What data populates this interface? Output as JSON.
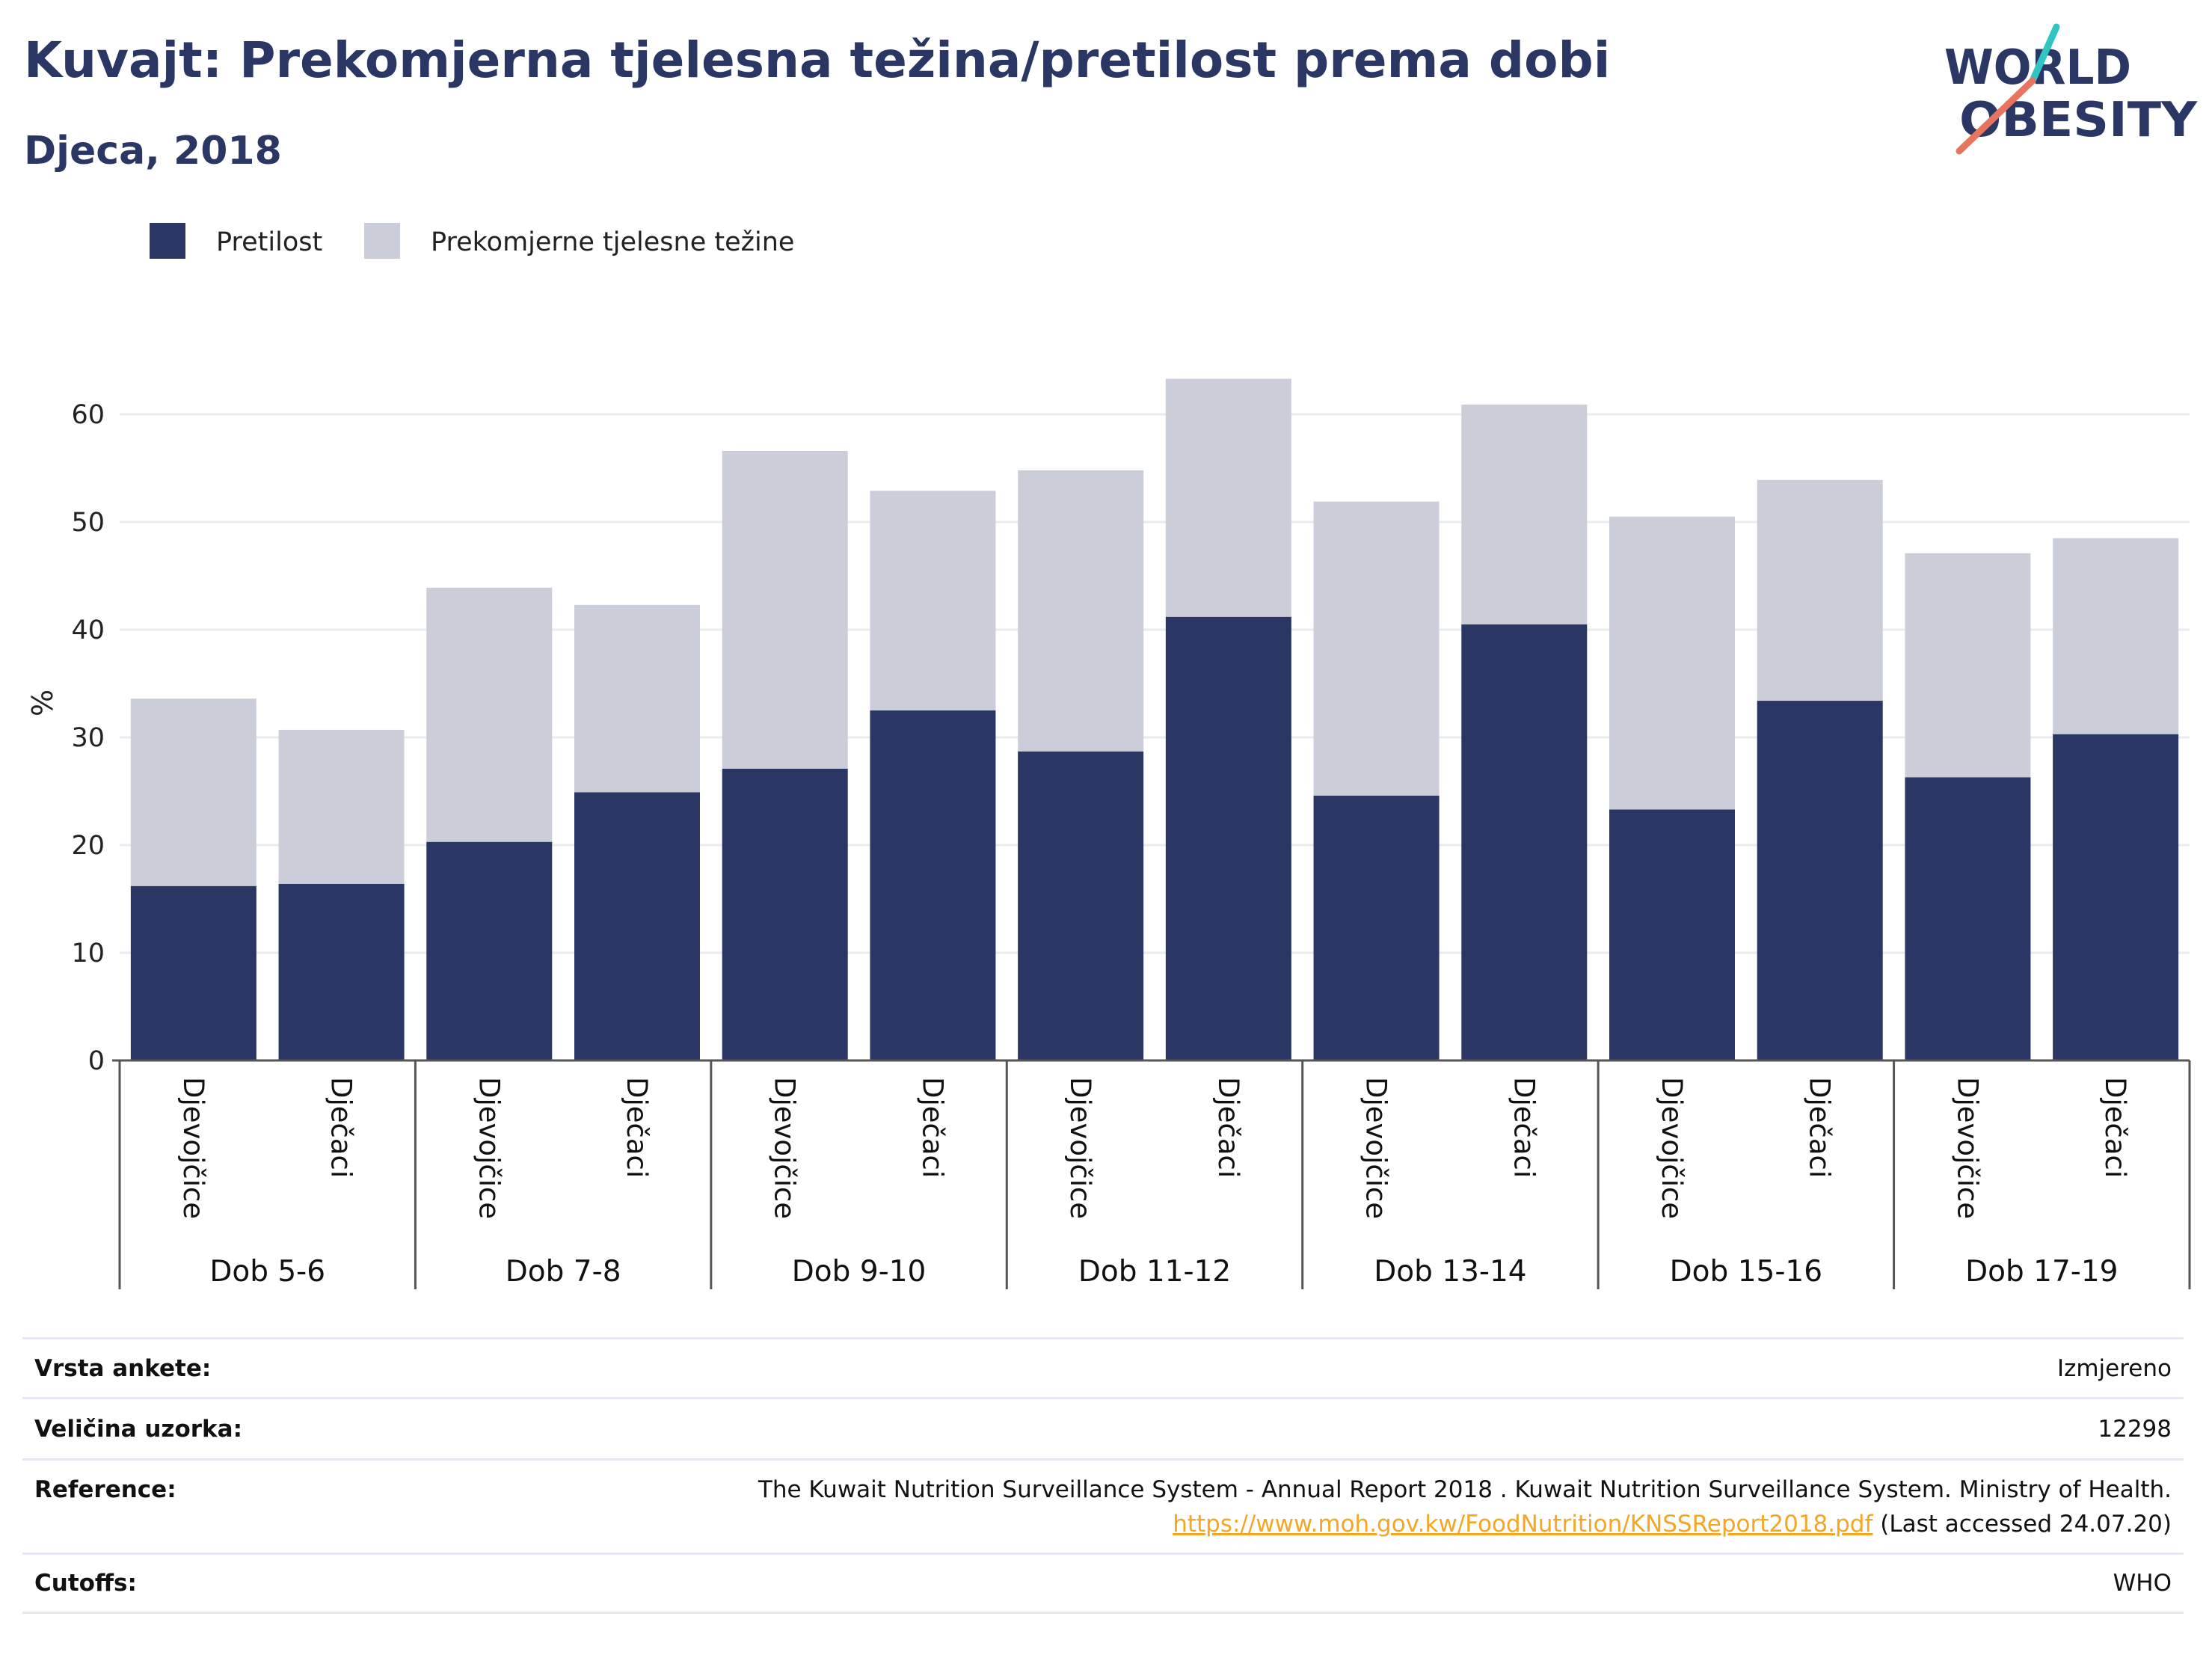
{
  "header": {
    "title": "Kuvajt: Prekomjerna tjelesna težina/pretilost prema dobi",
    "subtitle": "Djeca, 2018"
  },
  "logo": {
    "line1": "WORLD",
    "line2": "OBESITY",
    "accent_colors": [
      "#32c4c0",
      "#e8735e"
    ]
  },
  "colors": {
    "obesity": "#2a3663",
    "overweight": "#cbcdd8",
    "grid": "#e9ebf1",
    "axis": "#555555"
  },
  "chart_data": {
    "type": "bar",
    "stacked": true,
    "ylabel": "%",
    "ylim": [
      0,
      65
    ],
    "yticks": [
      0,
      10,
      20,
      30,
      40,
      50,
      60
    ],
    "grid": true,
    "legend_position": "top-left",
    "legend": [
      "Pretilost",
      "Prekomjerne tjelesne težine"
    ],
    "groups": [
      "Dob 5-6",
      "Dob 7-8",
      "Dob 9-10",
      "Dob 11-12",
      "Dob 13-14",
      "Dob 15-16",
      "Dob 17-19"
    ],
    "subcategories": [
      "Djevojčice",
      "Dječaci"
    ],
    "series": [
      {
        "name": "Pretilost",
        "values": [
          16.2,
          16.4,
          20.3,
          24.9,
          27.1,
          32.5,
          28.7,
          41.2,
          24.6,
          40.5,
          23.3,
          33.4,
          26.3,
          30.3
        ]
      },
      {
        "name": "Prekomjerne tjelesne težine",
        "values": [
          17.4,
          14.3,
          23.6,
          17.4,
          29.5,
          20.4,
          26.1,
          22.1,
          27.3,
          20.4,
          27.2,
          20.5,
          20.8,
          18.2
        ]
      }
    ]
  },
  "footer": {
    "survey_type_label": "Vrsta ankete:",
    "survey_type_value": "Izmjereno",
    "sample_size_label": "Veličina uzorka:",
    "sample_size_value": "12298",
    "reference_label": "Reference:",
    "reference_text": "The Kuwait Nutrition Surveillance System - Annual Report 2018 . Kuwait Nutrition Surveillance System. Ministry of Health.",
    "reference_link": "https://www.moh.gov.kw/FoodNutrition/KNSSReport2018.pdf",
    "reference_accessed": " (Last accessed 24.07.20)",
    "cutoffs_label": "Cutoffs:",
    "cutoffs_value": "WHO"
  }
}
